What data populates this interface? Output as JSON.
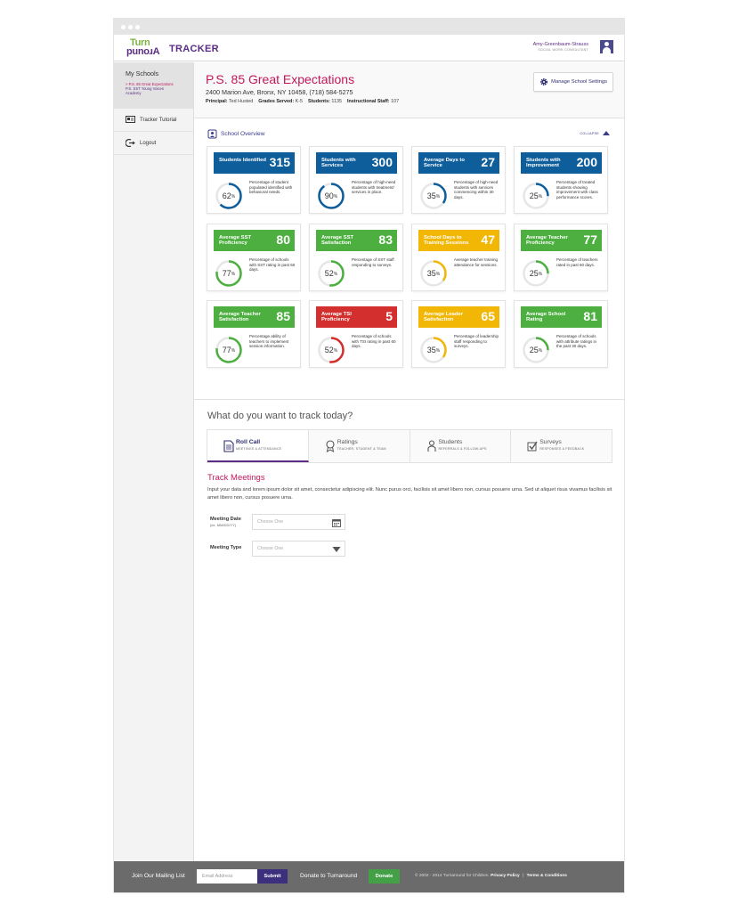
{
  "header": {
    "logo_top": "Turn",
    "logo_bottom": "punoɹA",
    "logo_tracker": "TRACKER",
    "user_name": "Amy-Greenbaum-Strauss",
    "user_role": "SOCIAL WORK CONSULTANT"
  },
  "sidebar": {
    "title": "My Schools",
    "schools": [
      "> P.S. 85 Great Expectations",
      "P.S. SST Young Voices",
      "Academy"
    ],
    "items": [
      {
        "label": "Tracker Tutorial",
        "icon": "tutorial-icon"
      },
      {
        "label": "Logout",
        "icon": "logout-icon"
      }
    ]
  },
  "school": {
    "name": "P.S. 85 Great Expectations",
    "address": "2400 Marion Ave, Bronx, NY 10458, (718) 584-5275",
    "principal_label": "Principal:",
    "principal": "Ted Husted",
    "grades_label": "Grades Served:",
    "grades": "K-5",
    "students_label": "Students:",
    "students": "1135",
    "staff_label": "Instructional Staff:",
    "staff": "107",
    "manage_button": "Manage School Settings"
  },
  "overview": {
    "title": "School Overview",
    "collapse": "COLLAPSE",
    "colors": {
      "blue": "#0f5e9c",
      "green": "#4caf3f",
      "yellow": "#f2b705",
      "red": "#d32f2f"
    },
    "cards": [
      {
        "label": "Students Identified",
        "value": "315",
        "percent": 62,
        "color": "blue",
        "desc": "Percentage of student populated identified with behavioral needs."
      },
      {
        "label": "Students with Services",
        "value": "300",
        "percent": 90,
        "color": "blue",
        "desc": "Percentage of high-need students with treatment/ services in place."
      },
      {
        "label": "Average Days to Service",
        "value": "27",
        "percent": 35,
        "color": "blue",
        "desc": "Percentage of high-need students with services commencing within 30 days."
      },
      {
        "label": "Students with Improvement",
        "value": "200",
        "percent": 25,
        "color": "blue",
        "desc": "Percentage of treated students showing improvement with class performance scores."
      },
      {
        "label": "Average SST Proficiency",
        "value": "80",
        "percent": 77,
        "color": "green",
        "desc": "Percentage of schools with SST rating in past 60 days."
      },
      {
        "label": "Average SST Satisfaction",
        "value": "83",
        "percent": 52,
        "color": "green",
        "desc": "Percentage of SST staff responding to surveys."
      },
      {
        "label": "School Days to Training Sessions",
        "value": "47",
        "percent": 35,
        "color": "yellow",
        "desc": "Average teacher training attendance for sessions."
      },
      {
        "label": "Average Teacher Proficiency",
        "value": "77",
        "percent": 25,
        "color": "green",
        "desc": "Percentage of teachers rated in past 60 days."
      },
      {
        "label": "Average Teacher Satisfaction",
        "value": "85",
        "percent": 77,
        "color": "green",
        "desc": "Percentage ability of teachers to implement session information."
      },
      {
        "label": "Average TSI Proficiency",
        "value": "5",
        "percent": 52,
        "color": "red",
        "desc": "Percentage of schools with TSI rating in past 60 days."
      },
      {
        "label": "Average Leader Satisfaction",
        "value": "65",
        "percent": 35,
        "color": "yellow",
        "desc": "Percentage of leadership staff responding to surveys."
      },
      {
        "label": "Average School Rating",
        "value": "81",
        "percent": 25,
        "color": "green",
        "desc": "Percentage of schools with attribute ratings in the past 30 days."
      }
    ]
  },
  "track": {
    "question": "What do you want to track today?",
    "tabs": [
      {
        "title": "Roll Call",
        "sub": "MEETINGS & ATTENDANCE",
        "icon": "document-icon",
        "active": true
      },
      {
        "title": "Ratings",
        "sub": "TEACHER, STUDENT & TEAM",
        "icon": "ribbon-icon",
        "active": false
      },
      {
        "title": "Students",
        "sub": "REFERRALS & FOLLOW-UPS",
        "icon": "person-icon",
        "active": false
      },
      {
        "title": "Surveys",
        "sub": "RESPONSES & FEEDBACK",
        "icon": "check-icon",
        "active": false
      }
    ],
    "section_title": "Track Meetings",
    "intro": "Input your data and lorem ipsum dolor sit amet, consectetur adipiscing elit. Nunc purus orci, facilisis sit amet libero non, cursus posuere urna. Sed ut aliquet risus vivamus facilisis sit amet libero non, cursus posuere urna.",
    "meeting_date_label": "Meeting Date",
    "meeting_date_hint": "(ex. MM/DD/YY)",
    "meeting_date_placeholder": "Choose One",
    "meeting_type_label": "Meeting Type",
    "meeting_type_placeholder": "Choose One"
  },
  "footer": {
    "mailing_label": "Join Our Mailing List",
    "email_placeholder": "Email Address",
    "submit": "Submit",
    "donate_text": "Donate to Turnaround",
    "donate_button": "Donate",
    "copyright": "© 2002 - 2014 Turnaround for Children.",
    "privacy": "Privacy Policy",
    "separator": "|",
    "terms": "Terms & Conditions"
  }
}
